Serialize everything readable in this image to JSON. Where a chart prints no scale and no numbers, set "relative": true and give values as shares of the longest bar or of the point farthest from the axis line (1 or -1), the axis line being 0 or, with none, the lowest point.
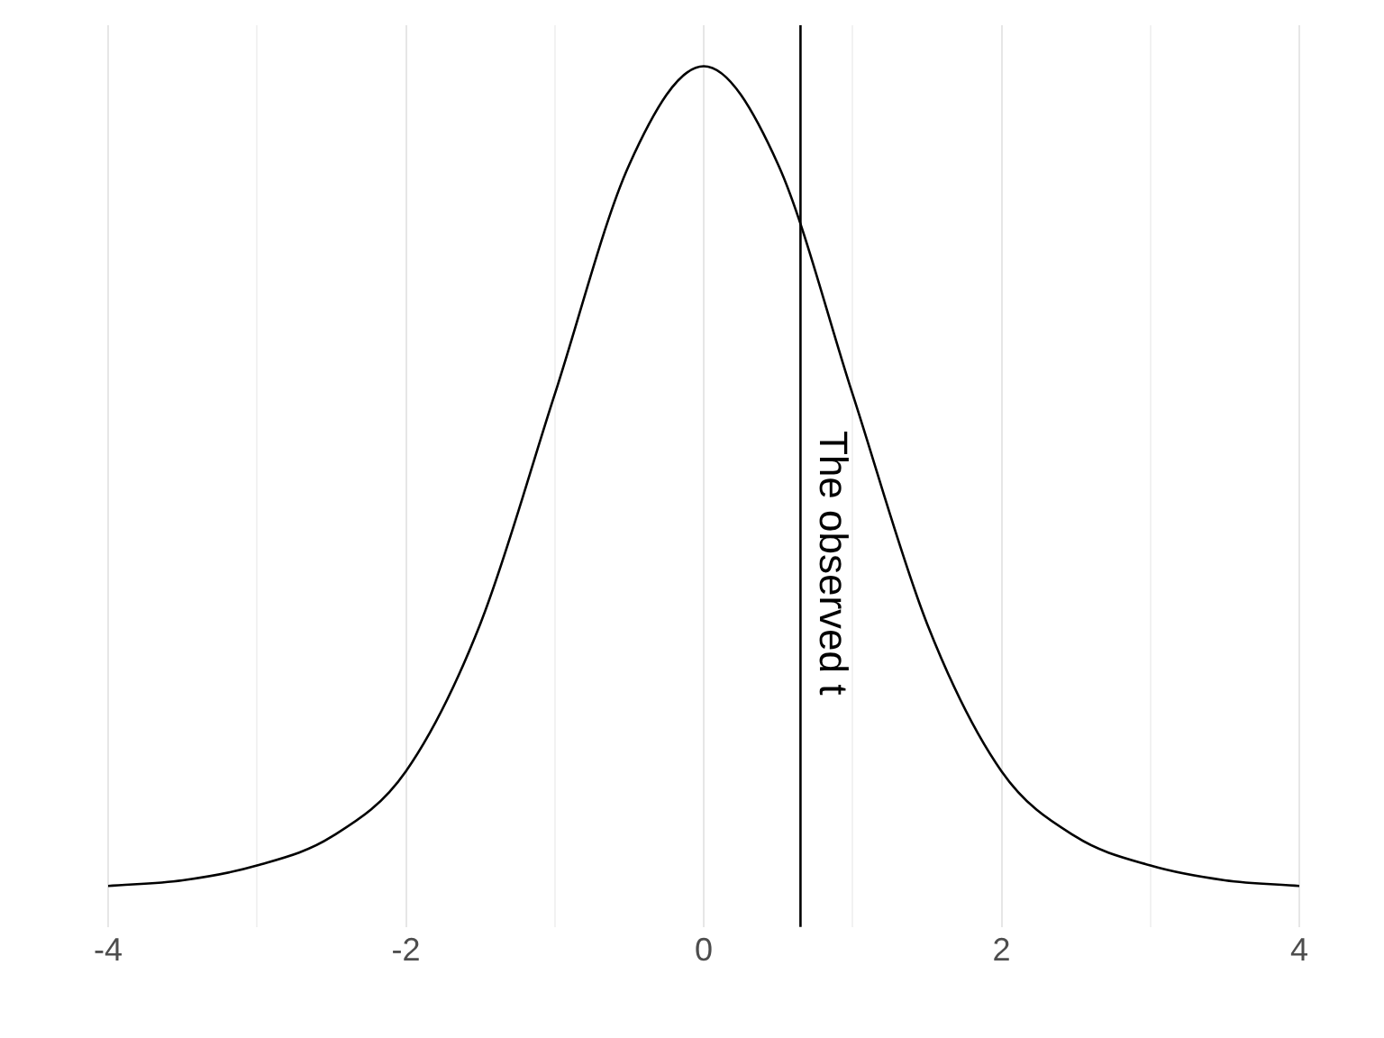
{
  "chart_data": {
    "type": "line",
    "relative": true,
    "x": [
      -4,
      -3.5,
      -3,
      -2.5,
      -2,
      -1.5,
      -1,
      -0.5,
      0,
      0.5,
      1,
      1.5,
      2,
      2.5,
      3,
      3.5,
      4
    ],
    "series": [
      {
        "color": "#000000",
        "values": [
          0,
          0.007,
          0.025,
          0.06,
          0.14,
          0.32,
          0.6,
          0.88,
          1,
          0.88,
          0.6,
          0.32,
          0.14,
          0.06,
          0.025,
          0.007,
          0
        ]
      }
    ],
    "xlim": [
      -4,
      4
    ],
    "xticks": [
      -4,
      {
        "value": -3,
        "label": null
      },
      -2,
      {
        "value": -1,
        "label": null
      },
      0,
      {
        "value": 1,
        "label": null
      },
      2,
      {
        "value": 3,
        "label": null
      },
      4
    ],
    "ref_lines": [
      {
        "axis": "x",
        "value": 0.65,
        "label": "The observed t",
        "color": "#000000"
      }
    ],
    "grid": "x",
    "tick_labels": "x",
    "legend": false,
    "marker": "none",
    "line_style": "solid"
  }
}
